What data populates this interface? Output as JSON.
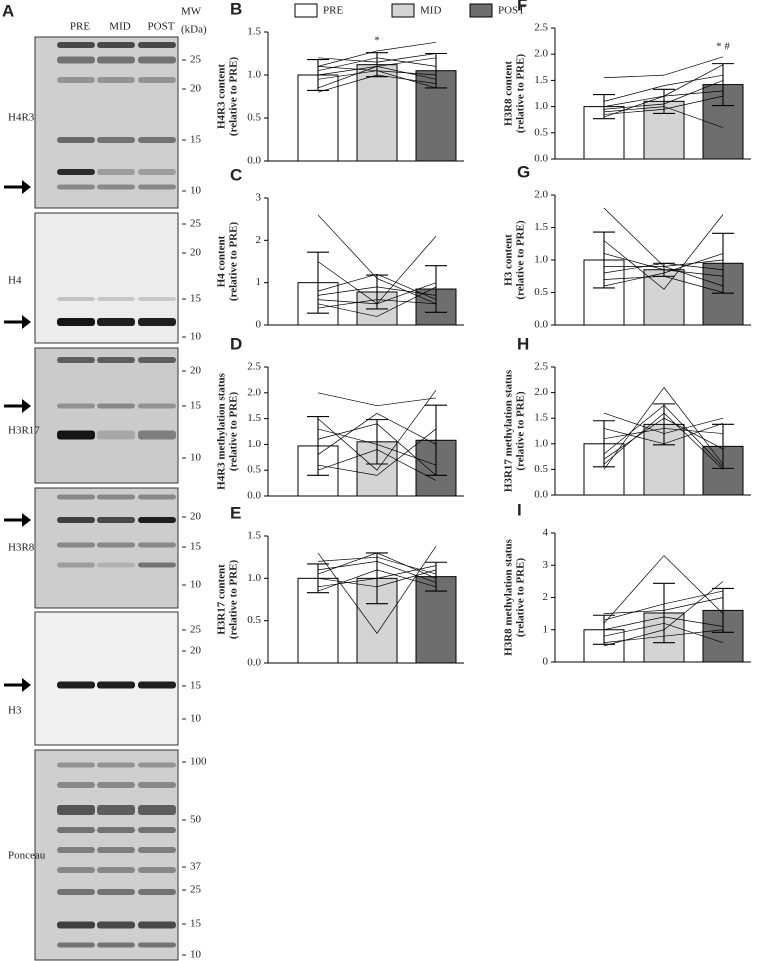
{
  "panel_label": "A",
  "blot": {
    "columns": [
      "PRE",
      "MID",
      "POST"
    ],
    "mw_title": [
      "MW",
      "(kDa)"
    ],
    "blots": [
      {
        "name": "H4R3",
        "mw": [
          25,
          20,
          15,
          10
        ]
      },
      {
        "name": "H4",
        "mw": [
          25,
          20,
          15,
          10
        ]
      },
      {
        "name": "H3R17",
        "mw": [
          20,
          15,
          10
        ]
      },
      {
        "name": "H3R8",
        "mw": [
          20,
          15,
          10
        ]
      },
      {
        "name": "H3",
        "mw": [
          25,
          20,
          15,
          10
        ]
      },
      {
        "name": "Ponceau",
        "mw": [
          100,
          50,
          37,
          25,
          15,
          10
        ]
      }
    ]
  },
  "legend": [
    {
      "name": "PRE",
      "color": "#ffffff"
    },
    {
      "name": "MID",
      "color": "#d4d4d4"
    },
    {
      "name": "POST",
      "color": "#6e6e6e"
    }
  ],
  "chart_data": [
    {
      "type": "bar",
      "label": "B",
      "ylabel": [
        "H4R3 content",
        "(relative to PRE)"
      ],
      "values": [
        1.0,
        1.12,
        1.05
      ],
      "errors": [
        0.18,
        0.14,
        0.2
      ],
      "subjects": [
        [
          0.85,
          1.1,
          0.95
        ],
        [
          1.1,
          1.28,
          1.38
        ],
        [
          1.2,
          1.15,
          1.25
        ],
        [
          0.95,
          1.05,
          0.85
        ],
        [
          0.8,
          1.0,
          0.9
        ],
        [
          1.05,
          1.2,
          1.1
        ],
        [
          1.0,
          1.1,
          1.2
        ],
        [
          1.1,
          1.05,
          1.0
        ]
      ],
      "annotations": [
        {
          "text": "*",
          "bar": 1
        }
      ],
      "ylim": [
        0,
        1.5
      ],
      "yticks": [
        {
          "value": 0,
          "label": "0.0"
        },
        0.5,
        {
          "value": 1,
          "label": "1.0"
        },
        1.5
      ]
    },
    {
      "type": "bar",
      "label": "C",
      "ylabel": [
        "H4 content",
        "(relative to PRE)"
      ],
      "values": [
        1.0,
        0.78,
        0.85
      ],
      "errors": [
        0.72,
        0.4,
        0.55
      ],
      "subjects": [
        [
          2.6,
          1.1,
          0.5
        ],
        [
          1.5,
          0.5,
          2.1
        ],
        [
          0.8,
          1.2,
          0.6
        ],
        [
          0.5,
          0.2,
          0.9
        ],
        [
          0.7,
          0.9,
          0.7
        ],
        [
          0.6,
          0.5,
          1.0
        ],
        [
          0.4,
          0.6,
          0.5
        ]
      ],
      "annotations": [],
      "ylim": [
        0,
        3
      ],
      "yticks": [
        0,
        1,
        2,
        3
      ]
    },
    {
      "type": "bar",
      "label": "D",
      "ylabel": [
        "H4R3 methylation status",
        "(relative to PRE)"
      ],
      "values": [
        0.97,
        1.05,
        1.08
      ],
      "errors": [
        0.57,
        0.43,
        0.68
      ],
      "subjects": [
        [
          2.0,
          1.75,
          1.9
        ],
        [
          1.5,
          0.5,
          2.05
        ],
        [
          1.1,
          1.4,
          0.4
        ],
        [
          0.5,
          0.9,
          0.3
        ],
        [
          0.8,
          1.6,
          1.0
        ],
        [
          0.6,
          0.4,
          1.3
        ],
        [
          1.3,
          1.0,
          0.6
        ]
      ],
      "annotations": [],
      "ylim": [
        0,
        2.5
      ],
      "yticks": [
        {
          "value": 0,
          "label": "0.0"
        },
        0.5,
        {
          "value": 1,
          "label": "1.0"
        },
        1.5,
        {
          "value": 2,
          "label": "2.0"
        },
        2.5
      ]
    },
    {
      "type": "bar",
      "label": "E",
      "ylabel": [
        "H3R17 content",
        "(relative to PRE)"
      ],
      "values": [
        1.0,
        1.0,
        1.02
      ],
      "errors": [
        0.17,
        0.3,
        0.17
      ],
      "subjects": [
        [
          1.3,
          0.35,
          1.38
        ],
        [
          1.2,
          1.25,
          1.05
        ],
        [
          0.85,
          1.1,
          0.9
        ],
        [
          1.0,
          0.9,
          1.1
        ],
        [
          1.1,
          1.2,
          0.95
        ],
        [
          0.9,
          1.0,
          1.15
        ],
        [
          1.05,
          1.3,
          1.0
        ]
      ],
      "annotations": [],
      "ylim": [
        0,
        1.5
      ],
      "yticks": [
        {
          "value": 0,
          "label": "0.0"
        },
        0.5,
        {
          "value": 1,
          "label": "1.0"
        },
        1.5
      ]
    },
    {
      "type": "bar",
      "label": "F",
      "ylabel": [
        "H3R8 content",
        "(relative to PRE)"
      ],
      "values": [
        1.0,
        1.1,
        1.42
      ],
      "errors": [
        0.23,
        0.23,
        0.4
      ],
      "subjects": [
        [
          1.55,
          1.6,
          1.95
        ],
        [
          0.8,
          1.2,
          1.8
        ],
        [
          0.95,
          1.05,
          1.5
        ],
        [
          1.1,
          1.4,
          1.6
        ],
        [
          0.9,
          1.0,
          0.6
        ],
        [
          1.0,
          1.2,
          1.3
        ],
        [
          0.85,
          0.95,
          1.2
        ]
      ],
      "annotations": [
        {
          "text": "* #",
          "bar": 2
        }
      ],
      "ylim": [
        0,
        2.5
      ],
      "yticks": [
        {
          "value": 0,
          "label": "0.0"
        },
        0.5,
        {
          "value": 1,
          "label": "1.0"
        },
        1.5,
        {
          "value": 2,
          "label": "2.0"
        },
        2.5
      ]
    },
    {
      "type": "bar",
      "label": "G",
      "ylabel": [
        "H3 content",
        "(relative to PRE)"
      ],
      "values": [
        1.0,
        0.85,
        0.95
      ],
      "errors": [
        0.43,
        0.1,
        0.46
      ],
      "subjects": [
        [
          1.8,
          0.9,
          0.6
        ],
        [
          1.3,
          0.55,
          1.7
        ],
        [
          0.8,
          0.95,
          0.85
        ],
        [
          0.6,
          0.8,
          1.1
        ],
        [
          1.1,
          0.85,
          0.75
        ],
        [
          0.9,
          0.9,
          1.0
        ],
        [
          0.7,
          0.75,
          0.5
        ]
      ],
      "annotations": [],
      "ylim": [
        0,
        2
      ],
      "yticks": [
        {
          "value": 0,
          "label": "0.0"
        },
        0.5,
        {
          "value": 1,
          "label": "1.0"
        },
        1.5,
        {
          "value": 2,
          "label": "2.0"
        }
      ]
    },
    {
      "type": "bar",
      "label": "H",
      "ylabel": [
        "H3R17 methylation status",
        "(relative to PRE)"
      ],
      "values": [
        1.0,
        1.38,
        0.95
      ],
      "errors": [
        0.45,
        0.4,
        0.43
      ],
      "subjects": [
        [
          0.5,
          2.1,
          0.6
        ],
        [
          1.6,
          1.2,
          1.5
        ],
        [
          0.8,
          1.75,
          0.55
        ],
        [
          1.1,
          1.3,
          1.2
        ],
        [
          0.7,
          1.5,
          0.9
        ],
        [
          1.3,
          1.0,
          1.4
        ],
        [
          0.6,
          1.6,
          0.5
        ]
      ],
      "annotations": [],
      "ylim": [
        0,
        2.5
      ],
      "yticks": [
        {
          "value": 0,
          "label": "0.0"
        },
        0.5,
        {
          "value": 1,
          "label": "1.0"
        },
        1.5,
        {
          "value": 2,
          "label": "2.0"
        },
        2.5
      ]
    },
    {
      "type": "bar",
      "label": "I",
      "ylabel": [
        "H3R8 methylation status",
        "(relative to PRE)"
      ],
      "values": [
        1.0,
        1.52,
        1.6
      ],
      "errors": [
        0.45,
        0.92,
        0.68
      ],
      "subjects": [
        [
          1.2,
          3.3,
          1.5
        ],
        [
          0.5,
          1.0,
          2.5
        ],
        [
          1.5,
          1.6,
          2.0
        ],
        [
          0.8,
          1.2,
          0.6
        ],
        [
          1.0,
          1.4,
          1.1
        ],
        [
          1.3,
          1.8,
          2.2
        ],
        [
          0.6,
          0.8,
          1.0
        ]
      ],
      "annotations": [],
      "ylim": [
        0,
        4
      ],
      "yticks": [
        0,
        1,
        2,
        3,
        4
      ]
    }
  ]
}
